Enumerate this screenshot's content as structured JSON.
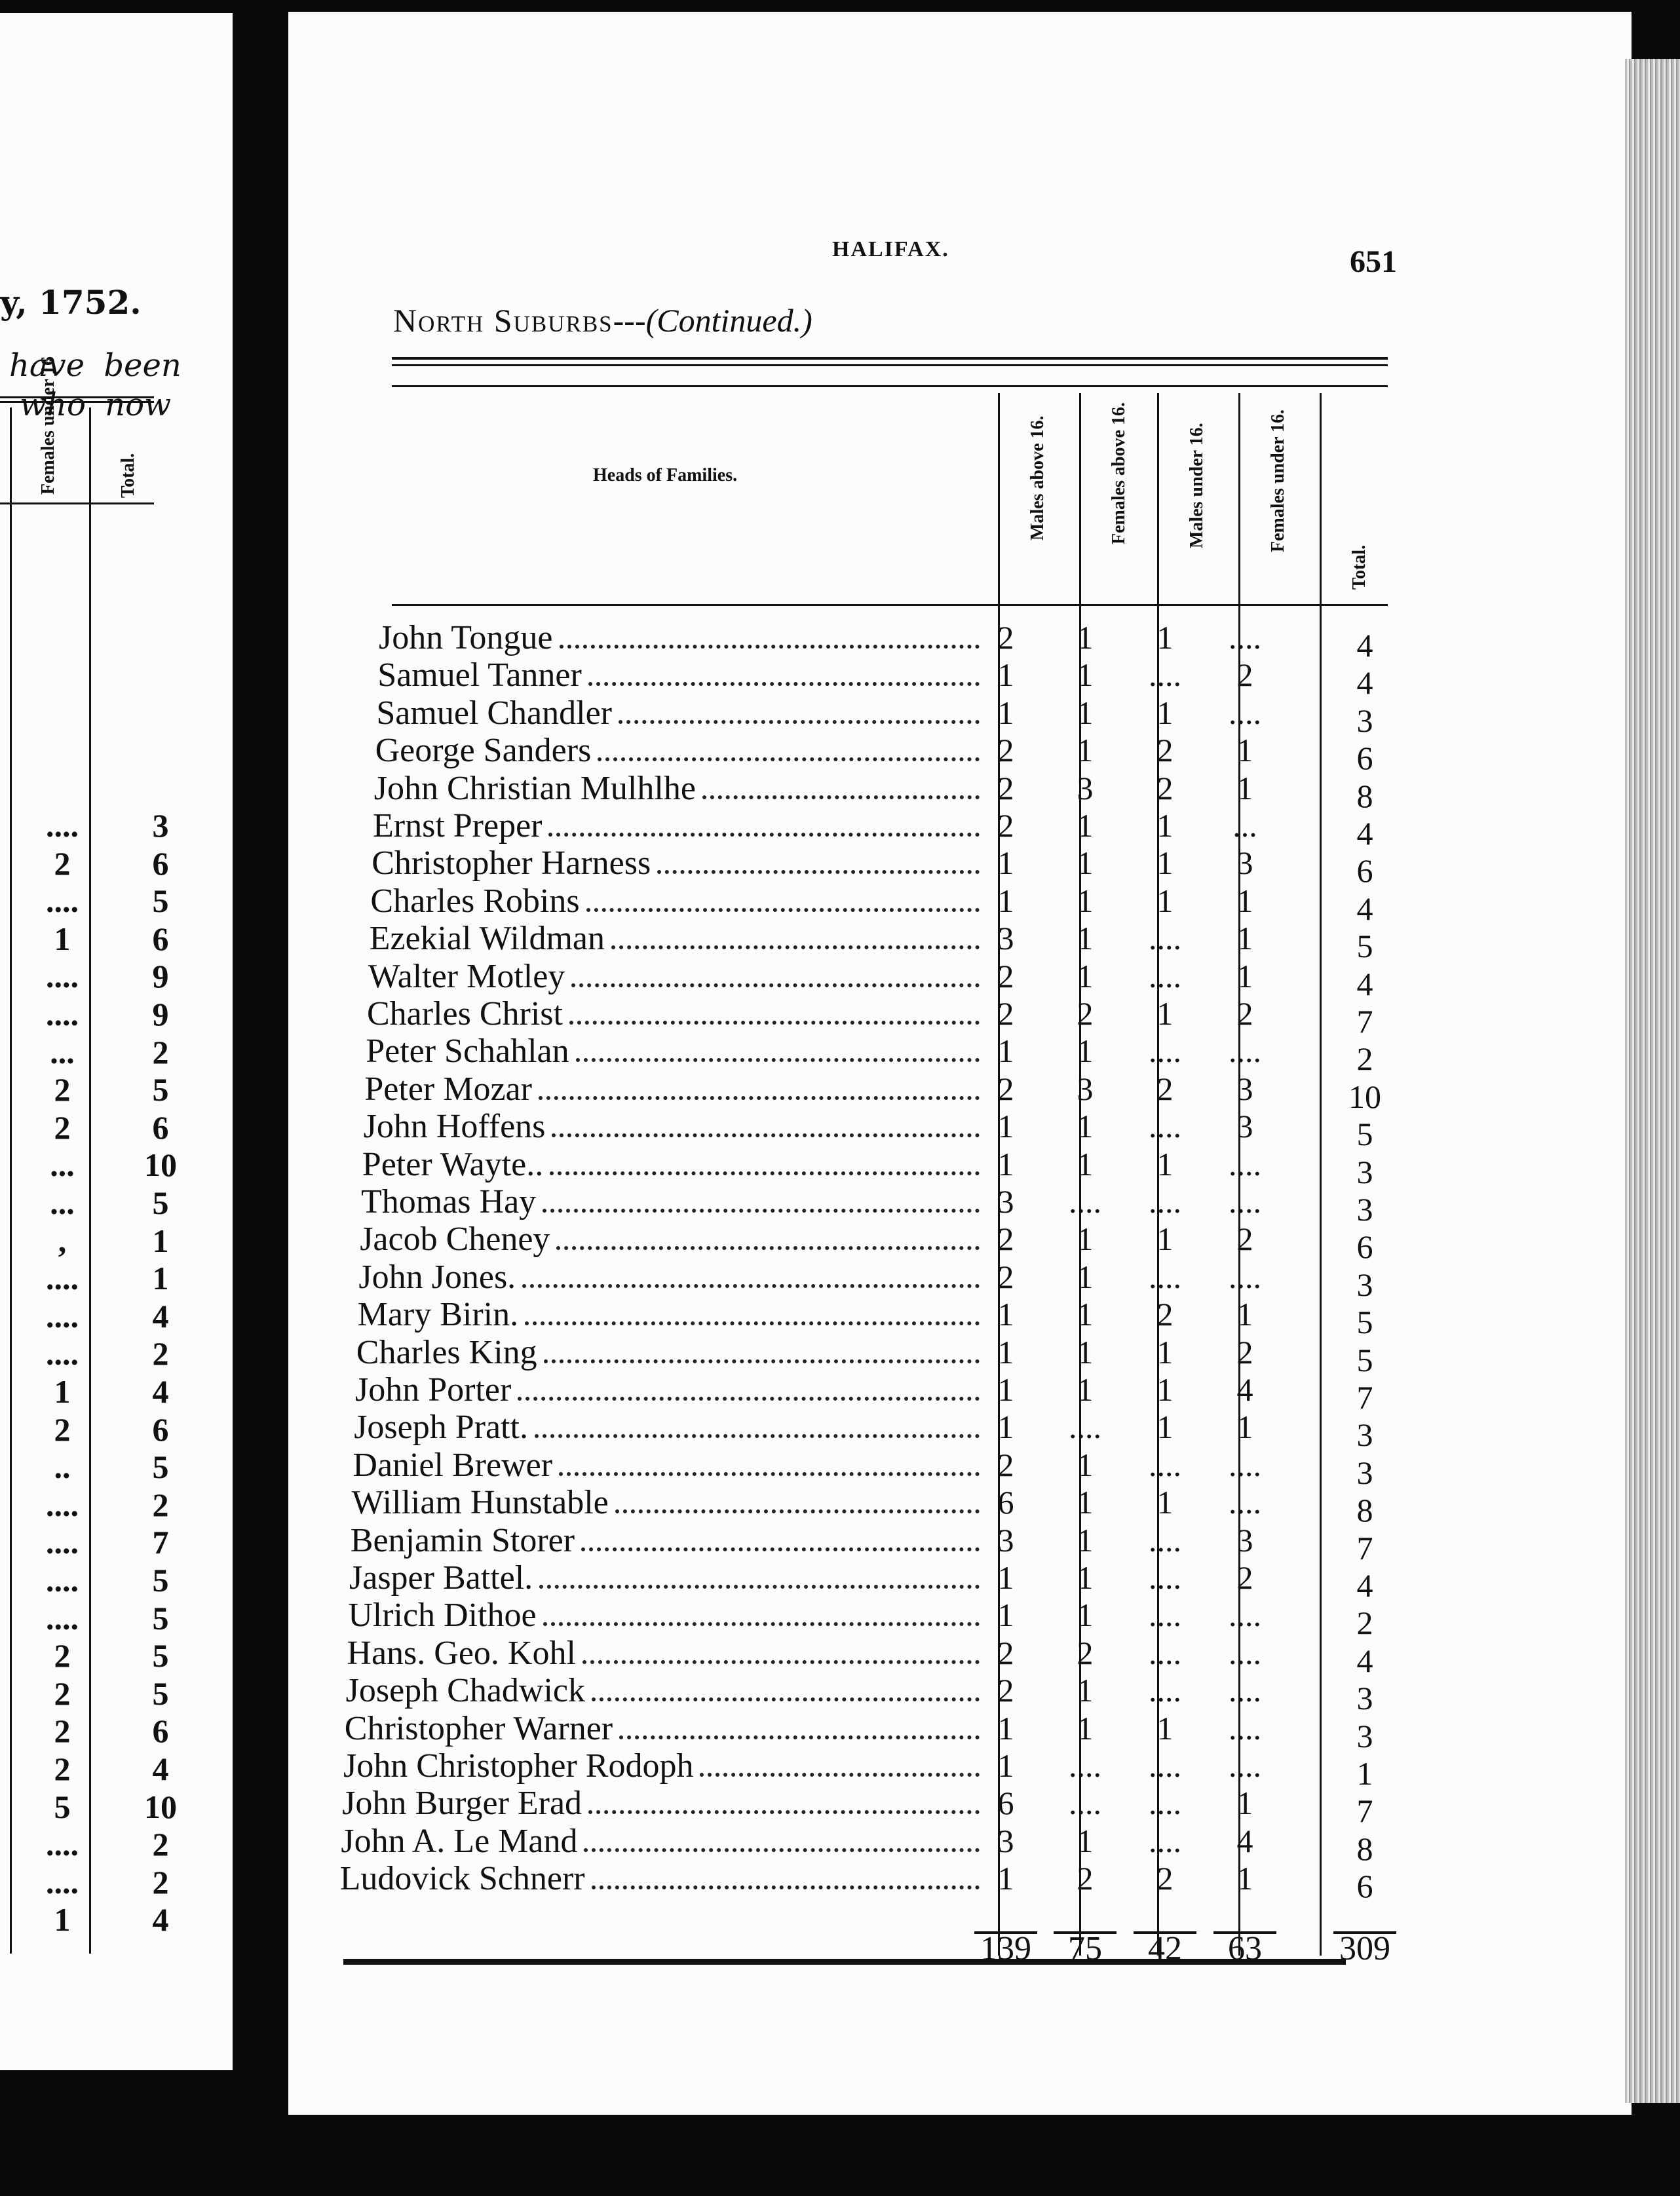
{
  "left_page": {
    "heading_fragment": "y, 1752.",
    "text_line_1": "have been",
    "text_line_2": "who now",
    "columns": [
      "Females under 16",
      "Total."
    ],
    "rows": [
      [
        "....",
        "3"
      ],
      [
        "2",
        "6"
      ],
      [
        "....",
        "5"
      ],
      [
        "1",
        "6"
      ],
      [
        "....",
        "9"
      ],
      [
        "....",
        "9"
      ],
      [
        "...",
        "2"
      ],
      [
        "2",
        "5"
      ],
      [
        "2",
        "6"
      ],
      [
        "...",
        "10"
      ],
      [
        "...",
        "5"
      ],
      [
        ",",
        "1"
      ],
      [
        "....",
        "1"
      ],
      [
        "....",
        "4"
      ],
      [
        "....",
        "2"
      ],
      [
        "1",
        "4"
      ],
      [
        "2",
        "6"
      ],
      [
        "..",
        "5"
      ],
      [
        "....",
        "2"
      ],
      [
        "....",
        "7"
      ],
      [
        "....",
        "5"
      ],
      [
        "....",
        "5"
      ],
      [
        "2",
        "5"
      ],
      [
        "2",
        "5"
      ],
      [
        "2",
        "6"
      ],
      [
        "2",
        "4"
      ],
      [
        "5",
        "10"
      ],
      [
        "....",
        "2"
      ],
      [
        "....",
        "2"
      ],
      [
        "1",
        "4"
      ]
    ]
  },
  "right_page": {
    "running_head": "HALIFAX.",
    "page_number": "651",
    "section_title": "North Suburbs",
    "section_suffix": "---(Continued.)",
    "table": {
      "name_header": "Heads of Families.",
      "columns": [
        "Males above 16.",
        "Females above 16.",
        "Males under 16.",
        "Females under 16.",
        "Total."
      ],
      "rows": [
        {
          "name": "John Tongue",
          "values": [
            "2",
            "1",
            "1",
            "....",
            "4"
          ]
        },
        {
          "name": "Samuel Tanner",
          "values": [
            "1",
            "1",
            "....",
            "2",
            "4"
          ]
        },
        {
          "name": "Samuel Chandler",
          "values": [
            "1",
            "1",
            "1",
            "....",
            "3"
          ]
        },
        {
          "name": "George Sanders",
          "values": [
            "2",
            "1",
            "2",
            "1",
            "6"
          ]
        },
        {
          "name": "John Christian Mulhlhe",
          "values": [
            "2",
            "3",
            "2",
            "1",
            "8"
          ]
        },
        {
          "name": "Ernst Preper",
          "values": [
            "2",
            "1",
            "1",
            "...",
            "4"
          ]
        },
        {
          "name": "Christopher Harness",
          "values": [
            "1",
            "1",
            "1",
            "3",
            "6"
          ]
        },
        {
          "name": "Charles Robins",
          "values": [
            "1",
            "1",
            "1",
            "1",
            "4"
          ]
        },
        {
          "name": "Ezekial Wildman",
          "values": [
            "3",
            "1",
            "....",
            "1",
            "5"
          ]
        },
        {
          "name": "Walter Motley",
          "values": [
            "2",
            "1",
            "....",
            "1",
            "4"
          ]
        },
        {
          "name": "Charles Christ",
          "values": [
            "2",
            "2",
            "1",
            "2",
            "7"
          ]
        },
        {
          "name": "Peter Schahlan",
          "values": [
            "1",
            "1",
            "....",
            "....",
            "2"
          ]
        },
        {
          "name": "Peter Mozar",
          "values": [
            "2",
            "3",
            "2",
            "3",
            "10"
          ]
        },
        {
          "name": "John Hoffens",
          "values": [
            "1",
            "1",
            "....",
            "3",
            "5"
          ]
        },
        {
          "name": "Peter Wayte..",
          "values": [
            "1",
            "1",
            "1",
            "....",
            "3"
          ]
        },
        {
          "name": "Thomas Hay",
          "values": [
            "3",
            "....",
            "....",
            "....",
            "3"
          ]
        },
        {
          "name": "Jacob Cheney",
          "values": [
            "2",
            "1",
            "1",
            "2",
            "6"
          ]
        },
        {
          "name": "John Jones.",
          "values": [
            "2",
            "1",
            "....",
            "....",
            "3"
          ]
        },
        {
          "name": "Mary Birin.",
          "values": [
            "1",
            "1",
            "2",
            "1",
            "5"
          ]
        },
        {
          "name": "Charles King",
          "values": [
            "1",
            "1",
            "1",
            "2",
            "5"
          ]
        },
        {
          "name": "John Porter",
          "values": [
            "1",
            "1",
            "1",
            "4",
            "7"
          ]
        },
        {
          "name": "Joseph Pratt.",
          "values": [
            "1",
            "....",
            "1",
            "1",
            "3"
          ]
        },
        {
          "name": "Daniel Brewer",
          "values": [
            "2",
            "1",
            "....",
            "....",
            "3"
          ]
        },
        {
          "name": "William Hunstable",
          "values": [
            "6",
            "1",
            "1",
            "....",
            "8"
          ]
        },
        {
          "name": "Benjamin Storer",
          "values": [
            "3",
            "1",
            "....",
            "3",
            "7"
          ]
        },
        {
          "name": "Jasper Battel.",
          "values": [
            "1",
            "1",
            "....",
            "2",
            "4"
          ]
        },
        {
          "name": "Ulrich Dithoe",
          "values": [
            "1",
            "1",
            "....",
            "....",
            "2"
          ]
        },
        {
          "name": "Hans. Geo. Kohl",
          "values": [
            "2",
            "2",
            "....",
            "....",
            "4"
          ]
        },
        {
          "name": "Joseph Chadwick",
          "values": [
            "2",
            "1",
            "....",
            "....",
            "3"
          ]
        },
        {
          "name": "Christopher Warner",
          "values": [
            "1",
            "1",
            "1",
            "....",
            "3"
          ]
        },
        {
          "name": "John Christopher Rodoph",
          "values": [
            "1",
            "....",
            "....",
            "....",
            "1"
          ]
        },
        {
          "name": "John Burger Erad",
          "values": [
            "6",
            "....",
            "....",
            "1",
            "7"
          ]
        },
        {
          "name": "John A. Le Mand",
          "values": [
            "3",
            "1",
            "....",
            "4",
            "8"
          ]
        },
        {
          "name": "Ludovick Schnerr",
          "values": [
            "1",
            "2",
            "2",
            "1",
            "6"
          ]
        }
      ],
      "totals": [
        "139",
        "75",
        "42",
        "63",
        "309"
      ]
    }
  }
}
